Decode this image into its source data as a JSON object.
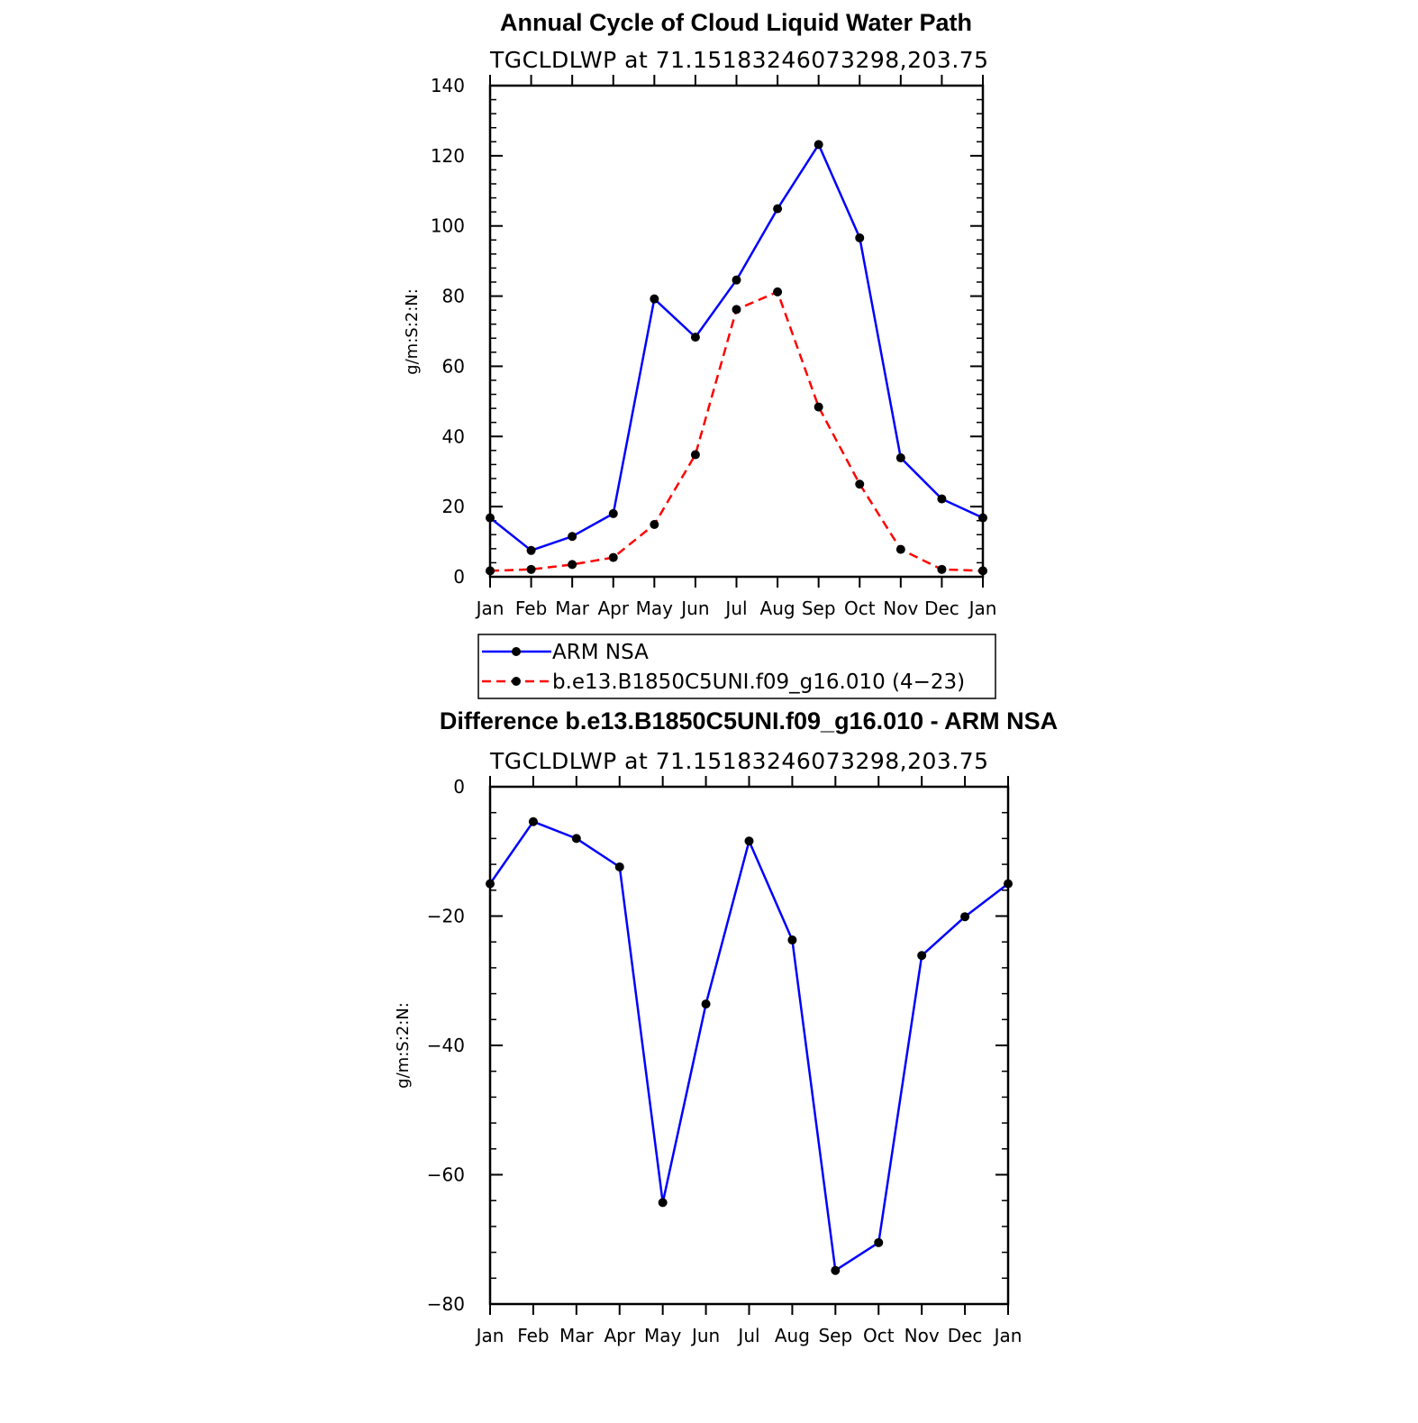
{
  "chart_data": [
    {
      "type": "line",
      "title": "Annual Cycle of Cloud Liquid Water Path",
      "subtitle": "TGCLDLWP  at  71.15183246073298,203.75",
      "xlabel": "",
      "ylabel": "g/m:S:2:N:",
      "categories": [
        "Jan",
        "Feb",
        "Mar",
        "Apr",
        "May",
        "Jun",
        "Jul",
        "Aug",
        "Sep",
        "Oct",
        "Nov",
        "Dec",
        "Jan"
      ],
      "ylim": [
        0,
        140
      ],
      "yticks": [
        "0",
        "20",
        "40",
        "60",
        "80",
        "100",
        "120",
        "140"
      ],
      "grid": false,
      "legend_position": "bottom",
      "series": [
        {
          "name": "ARM  NSA",
          "color": "#0000ff",
          "dash": "solid",
          "values": [
            16.8,
            7.5,
            11.5,
            18.0,
            79.2,
            68.3,
            84.6,
            104.9,
            123.2,
            96.6,
            33.9,
            22.2,
            16.8
          ]
        },
        {
          "name": "b.e13.B1850C5UNI.f09_g16.010  (4−23)",
          "color": "#ff0000",
          "dash": "dashed",
          "values": [
            1.7,
            2.1,
            3.5,
            5.5,
            14.9,
            34.8,
            76.2,
            81.2,
            48.4,
            26.4,
            7.8,
            2.1,
            1.7
          ]
        }
      ]
    },
    {
      "type": "line",
      "title": "Difference b.e13.B1850C5UNI.f09_g16.010 - ARM NSA",
      "subtitle": "TGCLDLWP  at  71.15183246073298,203.75",
      "xlabel": "",
      "ylabel": "g/m:S:2:N:",
      "categories": [
        "Jan",
        "Feb",
        "Mar",
        "Apr",
        "May",
        "Jun",
        "Jul",
        "Aug",
        "Sep",
        "Oct",
        "Nov",
        "Dec",
        "Jan"
      ],
      "ylim": [
        -80,
        0
      ],
      "yticks": [
        "−80",
        "−60",
        "−40",
        "−20",
        "0"
      ],
      "grid": false,
      "series": [
        {
          "color": "#0000ff",
          "dash": "solid",
          "values": [
            -15.0,
            -5.4,
            -8.0,
            -12.4,
            -64.3,
            -33.6,
            -8.4,
            -23.7,
            -74.8,
            -70.5,
            -26.1,
            -20.1,
            -15.0
          ]
        }
      ]
    }
  ]
}
